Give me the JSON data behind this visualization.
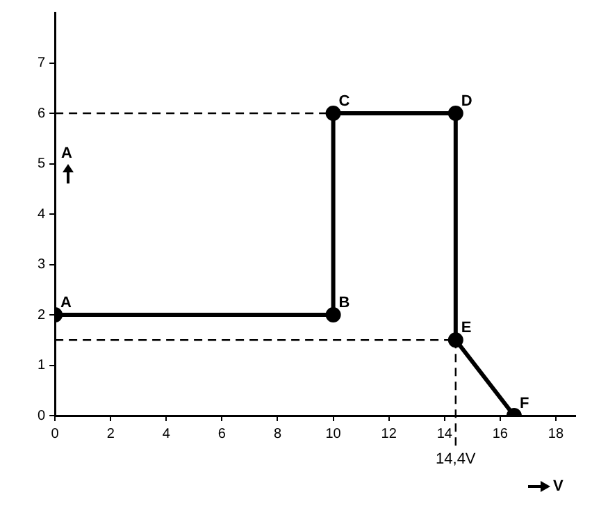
{
  "chart_data": {
    "type": "line",
    "xlabel": "V",
    "ylabel": "A",
    "x": [
      0,
      10,
      10,
      14.4,
      14.4,
      16.5
    ],
    "series": [
      {
        "color": "#000000",
        "values": [
          2,
          2,
          6,
          6,
          1.5,
          0
        ]
      }
    ],
    "xlim": [
      0,
      18.7
    ],
    "xticks": [
      0,
      2,
      4,
      6,
      8,
      10,
      12,
      14,
      16,
      18
    ],
    "ylim": [
      0,
      8
    ],
    "yticks": [
      0,
      1,
      2,
      3,
      4,
      5,
      6,
      7
    ],
    "ref_lines": [
      {
        "axis": "y",
        "value": 6,
        "line_style": "dashed",
        "color": "#000000"
      },
      {
        "axis": "y",
        "value": 1.5,
        "line_style": "dashed",
        "color": "#000000"
      },
      {
        "axis": "x",
        "value": 14.4,
        "label": "14,4V",
        "line_style": "dashed",
        "color": "#000000"
      }
    ],
    "annotations": [
      {
        "text": "A",
        "x": 0,
        "y": 2
      },
      {
        "text": "B",
        "x": 10,
        "y": 2
      },
      {
        "text": "C",
        "x": 10,
        "y": 6
      },
      {
        "text": "D",
        "x": 14.4,
        "y": 6
      },
      {
        "text": "E",
        "x": 14.4,
        "y": 1.5
      },
      {
        "text": "F",
        "x": 16.5,
        "y": 0
      }
    ],
    "marker": "circle",
    "line_style": "solid",
    "grid": false,
    "legend": false
  }
}
